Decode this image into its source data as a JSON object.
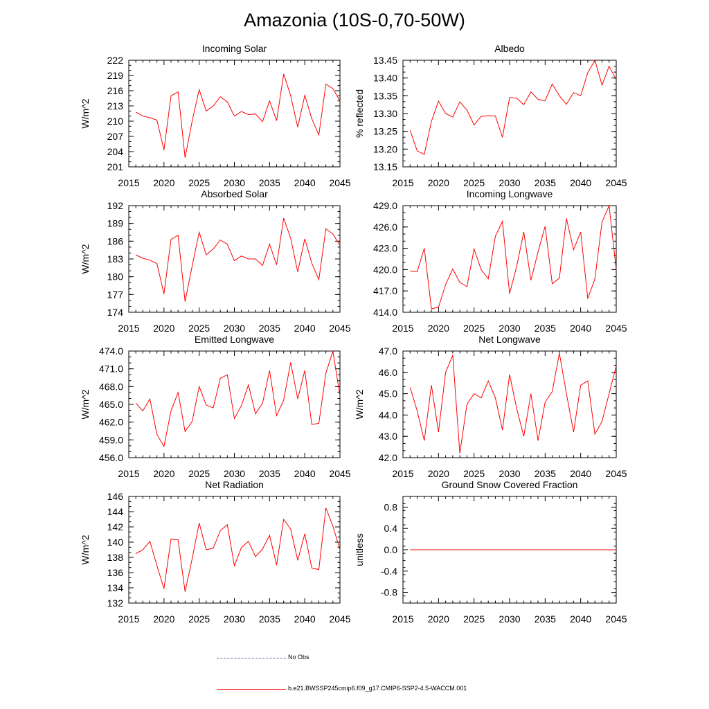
{
  "title": "Amazonia (10S-0,70-50W)",
  "colors": {
    "model_line": "#ff0000",
    "obs_line": "#5a5aa8",
    "axis": "#000000"
  },
  "legend": {
    "obs_label": "No Obs",
    "model_label": "b.e21.BWSSP245cmip6.f09_g17.CMIP6-SSP2-4.5-WACCM.001"
  },
  "chart_data": [
    {
      "type": "line",
      "title": "Incoming Solar",
      "ylabel": "W/m^2",
      "xlim": [
        2015,
        2045
      ],
      "ylim": [
        201,
        222
      ],
      "yticks": [
        201,
        204,
        207,
        210,
        213,
        216,
        219,
        222
      ],
      "ydecimals": 0,
      "xticks": [
        2015,
        2020,
        2025,
        2030,
        2035,
        2040,
        2045
      ],
      "series": [
        {
          "name": "b.e21.BWSSP245cmip6.f09_g17.CMIP6-SSP2-4.5-WACCM.001",
          "x": [
            2016,
            2017,
            2018,
            2019,
            2020,
            2021,
            2022,
            2023,
            2024,
            2025,
            2026,
            2027,
            2028,
            2029,
            2030,
            2031,
            2032,
            2033,
            2034,
            2035,
            2036,
            2037,
            2038,
            2039,
            2040,
            2041,
            2042,
            2043,
            2044,
            2045
          ],
          "values": [
            211.8,
            211.0,
            210.7,
            210.2,
            204.3,
            215.0,
            215.8,
            202.8,
            210.0,
            216.2,
            212.0,
            213.0,
            214.8,
            213.8,
            211.0,
            211.9,
            211.3,
            211.4,
            209.9,
            214.0,
            210.1,
            219.3,
            215.0,
            208.8,
            215.1,
            210.5,
            207.3,
            217.3,
            216.4,
            214.0
          ]
        }
      ]
    },
    {
      "type": "line",
      "title": "Albedo",
      "ylabel": "% reflected",
      "xlim": [
        2015,
        2045
      ],
      "ylim": [
        13.15,
        13.45
      ],
      "yticks": [
        13.15,
        13.2,
        13.25,
        13.3,
        13.35,
        13.4,
        13.45
      ],
      "ydecimals": 2,
      "xticks": [
        2015,
        2020,
        2025,
        2030,
        2035,
        2040,
        2045
      ],
      "series": [
        {
          "name": "b.e21.BWSSP245cmip6.f09_g17.CMIP6-SSP2-4.5-WACCM.001",
          "x": [
            2016,
            2017,
            2018,
            2019,
            2020,
            2021,
            2022,
            2023,
            2024,
            2025,
            2026,
            2027,
            2028,
            2029,
            2030,
            2031,
            2032,
            2033,
            2034,
            2035,
            2036,
            2037,
            2038,
            2039,
            2040,
            2041,
            2042,
            2043,
            2044,
            2045
          ],
          "values": [
            13.253,
            13.195,
            13.185,
            13.278,
            13.335,
            13.3,
            13.29,
            13.333,
            13.31,
            13.268,
            13.292,
            13.294,
            13.293,
            13.233,
            13.345,
            13.343,
            13.325,
            13.361,
            13.34,
            13.336,
            13.383,
            13.35,
            13.326,
            13.359,
            13.35,
            13.415,
            13.45,
            13.38,
            13.433,
            13.395
          ]
        }
      ]
    },
    {
      "type": "line",
      "title": "Absorbed Solar",
      "ylabel": "W/m^2",
      "xlim": [
        2015,
        2045
      ],
      "ylim": [
        174,
        192
      ],
      "yticks": [
        174,
        177,
        180,
        183,
        186,
        189,
        192
      ],
      "ydecimals": 0,
      "xticks": [
        2015,
        2020,
        2025,
        2030,
        2035,
        2040,
        2045
      ],
      "series": [
        {
          "name": "b.e21.BWSSP245cmip6.f09_g17.CMIP6-SSP2-4.5-WACCM.001",
          "x": [
            2016,
            2017,
            2018,
            2019,
            2020,
            2021,
            2022,
            2023,
            2024,
            2025,
            2026,
            2027,
            2028,
            2029,
            2030,
            2031,
            2032,
            2033,
            2034,
            2035,
            2036,
            2037,
            2038,
            2039,
            2040,
            2041,
            2042,
            2043,
            2044,
            2045
          ],
          "values": [
            183.7,
            183.1,
            182.8,
            182.2,
            177.1,
            186.3,
            187.0,
            175.8,
            181.8,
            187.5,
            183.7,
            184.7,
            186.2,
            185.5,
            182.7,
            183.5,
            183.0,
            183.0,
            181.9,
            185.5,
            182.0,
            189.9,
            186.5,
            180.8,
            186.4,
            182.3,
            179.5,
            188.1,
            187.2,
            185.3
          ]
        }
      ]
    },
    {
      "type": "line",
      "title": "Incoming Longwave",
      "ylabel": "",
      "xlim": [
        2015,
        2045
      ],
      "ylim": [
        414,
        429
      ],
      "yticks": [
        414,
        417,
        420,
        423,
        426,
        429
      ],
      "ydecimals": 1,
      "xticks": [
        2015,
        2020,
        2025,
        2030,
        2035,
        2040,
        2045
      ],
      "series": [
        {
          "name": "b.e21.BWSSP245cmip6.f09_g17.CMIP6-SSP2-4.5-WACCM.001",
          "x": [
            2016,
            2017,
            2018,
            2019,
            2020,
            2021,
            2022,
            2023,
            2024,
            2025,
            2026,
            2027,
            2028,
            2029,
            2030,
            2031,
            2032,
            2033,
            2034,
            2035,
            2036,
            2037,
            2038,
            2039,
            2040,
            2041,
            2042,
            2043,
            2044,
            2045
          ],
          "values": [
            419.8,
            419.7,
            423.0,
            414.5,
            414.7,
            417.9,
            420.1,
            418.2,
            417.6,
            422.9,
            420.0,
            418.7,
            424.7,
            426.8,
            416.6,
            420.5,
            425.3,
            418.5,
            422.5,
            426.1,
            418.0,
            418.8,
            427.2,
            422.8,
            425.3,
            415.9,
            418.7,
            426.7,
            429.0,
            420.0
          ]
        }
      ]
    },
    {
      "type": "line",
      "title": "Emitted Longwave",
      "ylabel": "W/m^2",
      "xlim": [
        2015,
        2045
      ],
      "ylim": [
        456,
        474
      ],
      "yticks": [
        456,
        459,
        462,
        465,
        468,
        471,
        474
      ],
      "ydecimals": 1,
      "xticks": [
        2015,
        2020,
        2025,
        2030,
        2035,
        2040,
        2045
      ],
      "series": [
        {
          "name": "b.e21.BWSSP245cmip6.f09_g17.CMIP6-SSP2-4.5-WACCM.001",
          "x": [
            2016,
            2017,
            2018,
            2019,
            2020,
            2021,
            2022,
            2023,
            2024,
            2025,
            2026,
            2027,
            2028,
            2029,
            2030,
            2031,
            2032,
            2033,
            2034,
            2035,
            2036,
            2037,
            2038,
            2039,
            2040,
            2041,
            2042,
            2043,
            2044,
            2045
          ],
          "values": [
            465.2,
            463.9,
            465.9,
            459.9,
            457.9,
            463.9,
            467.0,
            460.4,
            462.1,
            468.0,
            464.9,
            464.4,
            469.4,
            470.0,
            462.6,
            464.8,
            468.3,
            463.4,
            465.2,
            470.7,
            463.1,
            465.7,
            472.1,
            465.9,
            470.7,
            461.6,
            461.8,
            470.3,
            474.0,
            466.4
          ]
        }
      ]
    },
    {
      "type": "line",
      "title": "Net Longwave",
      "ylabel": "W/m^2",
      "xlim": [
        2015,
        2045
      ],
      "ylim": [
        42,
        47
      ],
      "yticks": [
        42,
        43,
        44,
        45,
        46,
        47
      ],
      "ydecimals": 1,
      "xticks": [
        2015,
        2020,
        2025,
        2030,
        2035,
        2040,
        2045
      ],
      "series": [
        {
          "name": "b.e21.BWSSP245cmip6.f09_g17.CMIP6-SSP2-4.5-WACCM.001",
          "x": [
            2016,
            2017,
            2018,
            2019,
            2020,
            2021,
            2022,
            2023,
            2024,
            2025,
            2026,
            2027,
            2028,
            2029,
            2030,
            2031,
            2032,
            2033,
            2034,
            2035,
            2036,
            2037,
            2038,
            2039,
            2040,
            2041,
            2042,
            2043,
            2044,
            2045
          ],
          "values": [
            45.3,
            44.2,
            42.8,
            45.4,
            43.2,
            46.0,
            46.8,
            42.2,
            44.5,
            45.0,
            44.8,
            45.6,
            44.8,
            43.3,
            45.9,
            44.3,
            43.0,
            45.0,
            42.8,
            44.6,
            45.1,
            46.9,
            45.0,
            43.2,
            45.4,
            45.6,
            43.1,
            43.7,
            45.0,
            46.3
          ]
        }
      ]
    },
    {
      "type": "line",
      "title": "Net Radiation",
      "ylabel": "W/m^2",
      "xlim": [
        2015,
        2045
      ],
      "ylim": [
        132,
        146
      ],
      "yticks": [
        132,
        134,
        136,
        138,
        140,
        142,
        144,
        146
      ],
      "ydecimals": 0,
      "xticks": [
        2015,
        2020,
        2025,
        2030,
        2035,
        2040,
        2045
      ],
      "series": [
        {
          "name": "b.e21.BWSSP245cmip6.f09_g17.CMIP6-SSP2-4.5-WACCM.001",
          "x": [
            2016,
            2017,
            2018,
            2019,
            2020,
            2021,
            2022,
            2023,
            2024,
            2025,
            2026,
            2027,
            2028,
            2029,
            2030,
            2031,
            2032,
            2033,
            2034,
            2035,
            2036,
            2037,
            2038,
            2039,
            2040,
            2041,
            2042,
            2043,
            2044,
            2045
          ],
          "values": [
            138.5,
            139.0,
            140.1,
            136.9,
            133.9,
            140.4,
            140.3,
            133.5,
            137.8,
            142.5,
            139.0,
            139.2,
            141.5,
            142.3,
            136.9,
            139.3,
            140.1,
            138.1,
            139.1,
            140.9,
            137.0,
            143.0,
            141.7,
            137.6,
            141.1,
            136.6,
            136.4,
            144.5,
            142.1,
            139.0
          ]
        }
      ]
    },
    {
      "type": "line",
      "title": "Ground Snow Covered Fraction",
      "ylabel": "unitless",
      "xlim": [
        2015,
        2045
      ],
      "ylim": [
        -1.0,
        1.0
      ],
      "yticks": [
        -0.8,
        -0.4,
        0.0,
        0.4,
        0.8
      ],
      "ydecimals": 1,
      "xticks": [
        2015,
        2020,
        2025,
        2030,
        2035,
        2040,
        2045
      ],
      "series": [
        {
          "name": "b.e21.BWSSP245cmip6.f09_g17.CMIP6-SSP2-4.5-WACCM.001",
          "x": [
            2016,
            2017,
            2018,
            2019,
            2020,
            2021,
            2022,
            2023,
            2024,
            2025,
            2026,
            2027,
            2028,
            2029,
            2030,
            2031,
            2032,
            2033,
            2034,
            2035,
            2036,
            2037,
            2038,
            2039,
            2040,
            2041,
            2042,
            2043,
            2044,
            2045
          ],
          "values": [
            0,
            0,
            0,
            0,
            0,
            0,
            0,
            0,
            0,
            0,
            0,
            0,
            0,
            0,
            0,
            0,
            0,
            0,
            0,
            0,
            0,
            0,
            0,
            0,
            0,
            0,
            0,
            0,
            0,
            0
          ]
        }
      ]
    }
  ]
}
